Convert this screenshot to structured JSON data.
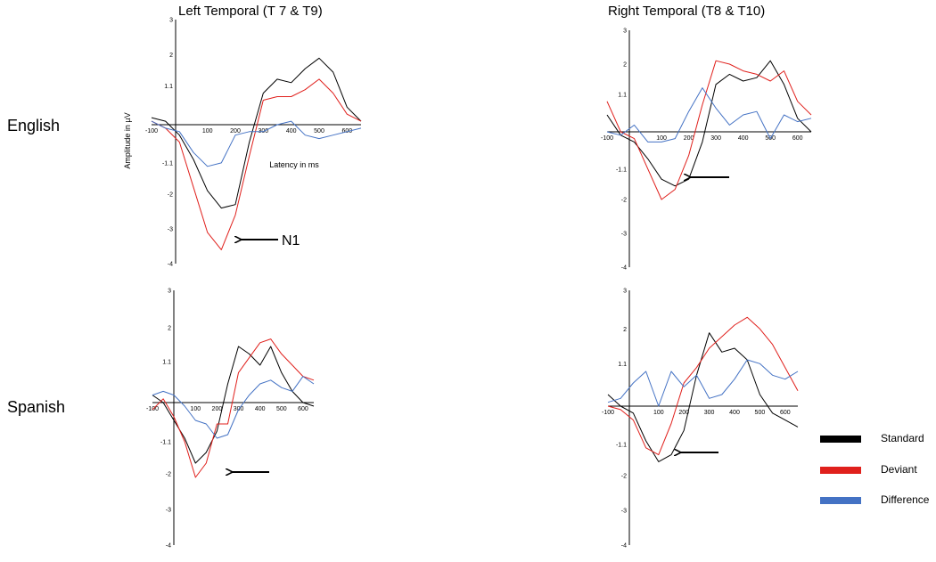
{
  "titles": {
    "left": "Left Temporal (T 7 & T9)",
    "right": "Right Temporal (T8 & T10)"
  },
  "rows": {
    "english": "English",
    "spanish": "Spanish"
  },
  "legend": [
    {
      "name": "Standard",
      "color": "#000000"
    },
    {
      "name": "Deviant",
      "color": "#e0201c"
    },
    {
      "name": "Difference",
      "color": "#4472c4"
    }
  ],
  "annotations": {
    "n1": "N1"
  },
  "chart_data": [
    {
      "type": "line",
      "panel": "English / Left Temporal",
      "xlabel": "Latency in ms",
      "ylabel": "Amplitude in µV",
      "x_ticks": [
        "-100",
        "100",
        "200",
        "300",
        "400",
        "500",
        "600"
      ],
      "y_ticks": [
        "3",
        "2",
        "1.1",
        "-1.1",
        "-2",
        "-3",
        "-4"
      ],
      "x": [
        -100,
        -50,
        0,
        50,
        100,
        150,
        200,
        250,
        300,
        350,
        400,
        450,
        500,
        550,
        600,
        650
      ],
      "series": [
        {
          "name": "Standard",
          "color": "#000000",
          "values": [
            0.2,
            0.1,
            -0.3,
            -1.0,
            -1.9,
            -2.4,
            -2.3,
            -0.5,
            0.9,
            1.3,
            1.2,
            1.6,
            1.9,
            1.5,
            0.5,
            0.1
          ]
        },
        {
          "name": "Deviant",
          "color": "#e0201c",
          "values": [
            0.1,
            -0.1,
            -0.5,
            -1.8,
            -3.1,
            -3.6,
            -2.6,
            -0.9,
            0.7,
            0.8,
            0.8,
            1.0,
            1.3,
            0.9,
            0.3,
            0.1
          ]
        },
        {
          "name": "Difference",
          "color": "#4472c4",
          "values": [
            0.1,
            -0.1,
            -0.2,
            -0.8,
            -1.2,
            -1.1,
            -0.3,
            -0.2,
            -0.2,
            0.0,
            0.1,
            -0.3,
            -0.4,
            -0.3,
            -0.2,
            -0.1
          ]
        }
      ]
    },
    {
      "type": "line",
      "panel": "English / Right Temporal",
      "x_ticks": [
        "-100",
        "100",
        "200",
        "300",
        "400",
        "500",
        "600"
      ],
      "y_ticks": [
        "3",
        "2",
        "1.1",
        "-1.1",
        "-2",
        "-3",
        "-4"
      ],
      "x": [
        -100,
        -50,
        0,
        50,
        100,
        150,
        200,
        250,
        300,
        350,
        400,
        450,
        500,
        550,
        600,
        650
      ],
      "series": [
        {
          "name": "Standard",
          "color": "#000000",
          "values": [
            0.5,
            -0.1,
            -0.3,
            -0.8,
            -1.4,
            -1.6,
            -1.4,
            -0.3,
            1.4,
            1.7,
            1.5,
            1.6,
            2.1,
            1.4,
            0.4,
            0.0
          ]
        },
        {
          "name": "Deviant",
          "color": "#e0201c",
          "values": [
            0.9,
            0.0,
            -0.2,
            -1.1,
            -2.0,
            -1.7,
            -0.7,
            0.8,
            2.1,
            2.0,
            1.8,
            1.7,
            1.5,
            1.8,
            0.9,
            0.5
          ]
        },
        {
          "name": "Difference",
          "color": "#4472c4",
          "values": [
            0.0,
            -0.1,
            0.2,
            -0.3,
            -0.3,
            -0.2,
            0.6,
            1.3,
            0.7,
            0.2,
            0.5,
            0.6,
            -0.2,
            0.5,
            0.3,
            0.4
          ]
        }
      ]
    },
    {
      "type": "line",
      "panel": "Spanish / Left Temporal",
      "x_ticks": [
        "-100",
        "100",
        "200",
        "300",
        "400",
        "500",
        "600"
      ],
      "y_ticks": [
        "3",
        "2",
        "1.1",
        "-1.1",
        "-2",
        "-3",
        "-4"
      ],
      "x": [
        -100,
        -50,
        0,
        50,
        100,
        150,
        200,
        250,
        300,
        350,
        400,
        450,
        500,
        550,
        600,
        650
      ],
      "series": [
        {
          "name": "Standard",
          "color": "#000000",
          "values": [
            0.2,
            0.0,
            -0.5,
            -1.0,
            -1.7,
            -1.4,
            -0.8,
            0.5,
            1.5,
            1.3,
            1.0,
            1.5,
            0.8,
            0.3,
            0.0,
            -0.1
          ]
        },
        {
          "name": "Deviant",
          "color": "#e0201c",
          "values": [
            -0.2,
            0.1,
            -0.4,
            -1.1,
            -2.1,
            -1.7,
            -0.6,
            -0.6,
            0.8,
            1.2,
            1.6,
            1.7,
            1.3,
            1.0,
            0.7,
            0.6
          ]
        },
        {
          "name": "Difference",
          "color": "#4472c4",
          "values": [
            0.2,
            0.3,
            0.2,
            -0.1,
            -0.5,
            -0.6,
            -1.0,
            -0.9,
            -0.2,
            0.2,
            0.5,
            0.6,
            0.4,
            0.3,
            0.7,
            0.5
          ]
        }
      ]
    },
    {
      "type": "line",
      "panel": "Spanish / Right Temporal",
      "x_ticks": [
        "-100",
        "100",
        "200",
        "300",
        "400",
        "500",
        "600"
      ],
      "y_ticks": [
        "3",
        "2",
        "1.1",
        "-1.1",
        "-2",
        "-3",
        "-4"
      ],
      "x": [
        -100,
        -50,
        0,
        50,
        100,
        150,
        200,
        250,
        300,
        350,
        400,
        450,
        500,
        550,
        600,
        650
      ],
      "series": [
        {
          "name": "Standard",
          "color": "#000000",
          "values": [
            0.3,
            0.0,
            -0.2,
            -1.0,
            -1.6,
            -1.4,
            -0.7,
            0.8,
            1.9,
            1.4,
            1.5,
            1.2,
            0.3,
            -0.2,
            -0.4,
            -0.6
          ]
        },
        {
          "name": "Deviant",
          "color": "#e0201c",
          "values": [
            0.0,
            -0.1,
            -0.4,
            -1.2,
            -1.4,
            -0.5,
            0.6,
            1.0,
            1.5,
            1.8,
            2.1,
            2.3,
            2.0,
            1.6,
            1.0,
            0.4
          ]
        },
        {
          "name": "Difference",
          "color": "#4472c4",
          "values": [
            0.1,
            0.2,
            0.6,
            0.9,
            0.0,
            0.9,
            0.5,
            0.8,
            0.2,
            0.3,
            0.7,
            1.2,
            1.1,
            0.8,
            0.7,
            0.9
          ]
        }
      ]
    }
  ]
}
